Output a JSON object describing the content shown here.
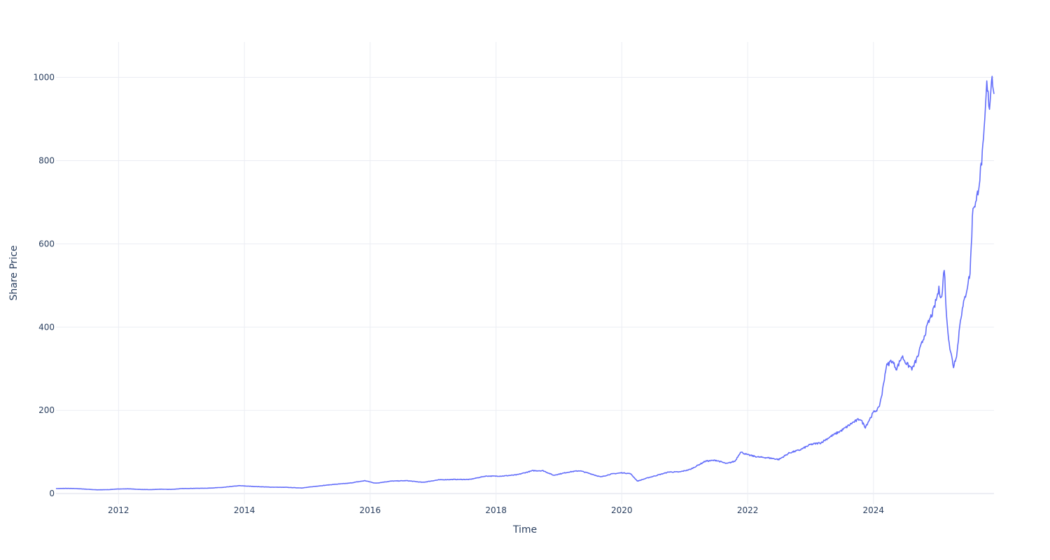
{
  "chart_data": {
    "type": "line",
    "xlabel": "Time",
    "ylabel": "Share Price",
    "x_tick_labels": [
      "2012",
      "2014",
      "2016",
      "2018",
      "2020",
      "2022",
      "2024"
    ],
    "y_tick_labels": [
      "0",
      "200",
      "400",
      "600",
      "800",
      "1000"
    ],
    "xlim": [
      "2011-01-03",
      "2025-12-01"
    ],
    "ylim": [
      -25,
      1085
    ],
    "grid": true,
    "colors": {
      "line": "#636efa",
      "grid": "#ebedf3",
      "text": "#2a3f5f"
    },
    "series": [
      {
        "points": [
          [
            "2011-01-03",
            12
          ],
          [
            "2011-03-01",
            12.5
          ],
          [
            "2011-05-01",
            12
          ],
          [
            "2011-07-01",
            10.5
          ],
          [
            "2011-09-01",
            9
          ],
          [
            "2011-11-01",
            9.5
          ],
          [
            "2012-01-01",
            11
          ],
          [
            "2012-03-01",
            11.5
          ],
          [
            "2012-05-01",
            10
          ],
          [
            "2012-07-01",
            9.5
          ],
          [
            "2012-09-01",
            10.5
          ],
          [
            "2012-11-01",
            10
          ],
          [
            "2013-01-01",
            12
          ],
          [
            "2013-03-01",
            12.5
          ],
          [
            "2013-06-01",
            13
          ],
          [
            "2013-09-01",
            15
          ],
          [
            "2013-12-01",
            19
          ],
          [
            "2014-03-01",
            17
          ],
          [
            "2014-06-01",
            15.5
          ],
          [
            "2014-09-01",
            15
          ],
          [
            "2014-12-01",
            13.5
          ],
          [
            "2015-03-01",
            18
          ],
          [
            "2015-06-01",
            22
          ],
          [
            "2015-09-01",
            25
          ],
          [
            "2015-12-01",
            31
          ],
          [
            "2016-02-01",
            25
          ],
          [
            "2016-05-01",
            30
          ],
          [
            "2016-08-01",
            31
          ],
          [
            "2016-11-01",
            27
          ],
          [
            "2017-02-01",
            33
          ],
          [
            "2017-05-01",
            34
          ],
          [
            "2017-08-01",
            34
          ],
          [
            "2017-11-01",
            42
          ],
          [
            "2018-02-01",
            42
          ],
          [
            "2018-05-01",
            45
          ],
          [
            "2018-08-01",
            55
          ],
          [
            "2018-10-01",
            55
          ],
          [
            "2018-12-01",
            44
          ],
          [
            "2019-03-01",
            52
          ],
          [
            "2019-05-01",
            55
          ],
          [
            "2019-07-01",
            48
          ],
          [
            "2019-09-01",
            40
          ],
          [
            "2019-11-01",
            47
          ],
          [
            "2020-01-01",
            50
          ],
          [
            "2020-02-20",
            48
          ],
          [
            "2020-04-01",
            30
          ],
          [
            "2020-06-01",
            38
          ],
          [
            "2020-08-01",
            45
          ],
          [
            "2020-10-01",
            52
          ],
          [
            "2020-12-01",
            52
          ],
          [
            "2021-02-01",
            58
          ],
          [
            "2021-05-01",
            78
          ],
          [
            "2021-07-01",
            80
          ],
          [
            "2021-09-01",
            72
          ],
          [
            "2021-10-20",
            78
          ],
          [
            "2021-11-20",
            100
          ],
          [
            "2022-01-01",
            93
          ],
          [
            "2022-03-01",
            88
          ],
          [
            "2022-05-01",
            86
          ],
          [
            "2022-07-01",
            82
          ],
          [
            "2022-09-01",
            98
          ],
          [
            "2022-11-01",
            105
          ],
          [
            "2023-01-01",
            118
          ],
          [
            "2023-03-01",
            122
          ],
          [
            "2023-05-01",
            138
          ],
          [
            "2023-07-01",
            152
          ],
          [
            "2023-09-01",
            170
          ],
          [
            "2023-10-15",
            180
          ],
          [
            "2023-11-15",
            160
          ],
          [
            "2024-01-01",
            195
          ],
          [
            "2024-02-01",
            205
          ],
          [
            "2024-02-20",
            240
          ],
          [
            "2024-03-15",
            305
          ],
          [
            "2024-04-15",
            320
          ],
          [
            "2024-05-15",
            300
          ],
          [
            "2024-06-15",
            330
          ],
          [
            "2024-07-15",
            310
          ],
          [
            "2024-08-15",
            300
          ],
          [
            "2024-09-15",
            330
          ],
          [
            "2024-10-15",
            370
          ],
          [
            "2024-11-15",
            410
          ],
          [
            "2024-12-15",
            440
          ],
          [
            "2025-01-15",
            490
          ],
          [
            "2025-02-01",
            470
          ],
          [
            "2025-02-15",
            545
          ],
          [
            "2025-03-01",
            420
          ],
          [
            "2025-03-20",
            350
          ],
          [
            "2025-04-10",
            305
          ],
          [
            "2025-05-01",
            340
          ],
          [
            "2025-05-20",
            420
          ],
          [
            "2025-06-15",
            470
          ],
          [
            "2025-07-15",
            530
          ],
          [
            "2025-08-01",
            690
          ],
          [
            "2025-08-20",
            700
          ],
          [
            "2025-09-10",
            760
          ],
          [
            "2025-10-01",
            840
          ],
          [
            "2025-10-20",
            980
          ],
          [
            "2025-11-05",
            930
          ],
          [
            "2025-11-20",
            1010
          ],
          [
            "2025-12-01",
            960
          ]
        ]
      }
    ]
  }
}
